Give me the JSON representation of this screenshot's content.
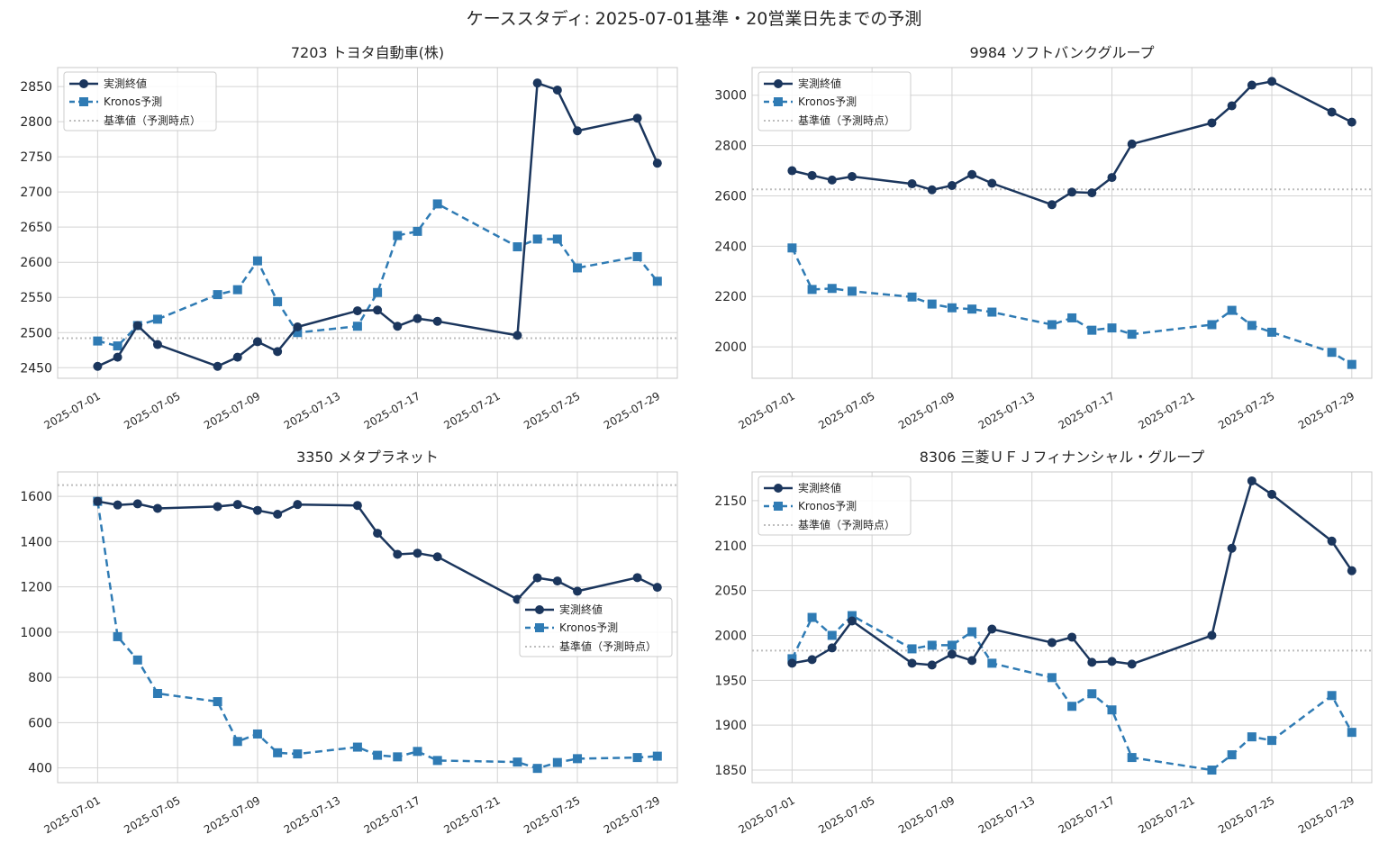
{
  "suptitle": "ケーススタディ: 2025-07-01基準・20営業日先までの予測",
  "colors": {
    "actual": "#1b365d",
    "forecast": "#2f7bb4",
    "baseline": "#bdbdbd",
    "grid": "#d3d3d3",
    "frame": "#c8c8c8"
  },
  "legend_labels": [
    "実測終値",
    "Kronos予測",
    "基準値（予測時点）"
  ],
  "chart_data": [
    {
      "type": "line",
      "title": "7203 トヨタ自動車(株)",
      "legend_position": "upper left",
      "ylim": [
        2435,
        2877
      ],
      "yticks": [
        2450,
        2500,
        2550,
        2600,
        2650,
        2700,
        2750,
        2800,
        2850
      ],
      "xlim": [
        "2025-06-29",
        "2025-07-30"
      ],
      "xticks": [
        "2025-07-01",
        "2025-07-05",
        "2025-07-09",
        "2025-07-13",
        "2025-07-17",
        "2025-07-21",
        "2025-07-25",
        "2025-07-29"
      ],
      "baseline": 2492,
      "x": [
        "2025-07-01",
        "2025-07-02",
        "2025-07-03",
        "2025-07-04",
        "2025-07-07",
        "2025-07-08",
        "2025-07-09",
        "2025-07-10",
        "2025-07-11",
        "2025-07-14",
        "2025-07-15",
        "2025-07-16",
        "2025-07-17",
        "2025-07-18",
        "2025-07-22",
        "2025-07-23",
        "2025-07-24",
        "2025-07-25",
        "2025-07-28",
        "2025-07-29"
      ],
      "series": [
        {
          "name": "実測終値",
          "values": [
            2452,
            2465,
            2510,
            2483,
            2452,
            2465,
            2487,
            2473,
            2508,
            2531,
            2532,
            2509,
            2520,
            2516,
            2496,
            2855,
            2845,
            2787,
            2805,
            2741
          ]
        },
        {
          "name": "Kronos予測",
          "values": [
            2488,
            2481,
            2510,
            2519,
            2554,
            2561,
            2602,
            2544,
            2500,
            2509,
            2557,
            2638,
            2644,
            2683,
            2622,
            2633,
            2633,
            2592,
            2608,
            2573
          ]
        }
      ]
    },
    {
      "type": "line",
      "title": "9984 ソフトバンクグループ",
      "legend_position": "upper left",
      "ylim": [
        1875,
        3110
      ],
      "yticks": [
        2000,
        2200,
        2400,
        2600,
        2800,
        3000
      ],
      "xlim": [
        "2025-06-29",
        "2025-07-30"
      ],
      "xticks": [
        "2025-07-01",
        "2025-07-05",
        "2025-07-09",
        "2025-07-13",
        "2025-07-17",
        "2025-07-21",
        "2025-07-25",
        "2025-07-29"
      ],
      "baseline": 2626,
      "x": [
        "2025-07-01",
        "2025-07-02",
        "2025-07-03",
        "2025-07-04",
        "2025-07-07",
        "2025-07-08",
        "2025-07-09",
        "2025-07-10",
        "2025-07-11",
        "2025-07-14",
        "2025-07-15",
        "2025-07-16",
        "2025-07-17",
        "2025-07-18",
        "2025-07-22",
        "2025-07-23",
        "2025-07-24",
        "2025-07-25",
        "2025-07-28",
        "2025-07-29"
      ],
      "series": [
        {
          "name": "実測終値",
          "values": [
            2700,
            2681,
            2663,
            2677,
            2648,
            2624,
            2641,
            2685,
            2650,
            2565,
            2615,
            2612,
            2673,
            2806,
            2890,
            2958,
            3040,
            3055,
            2933,
            2893
          ]
        },
        {
          "name": "Kronos予測",
          "values": [
            2393,
            2228,
            2232,
            2221,
            2198,
            2170,
            2155,
            2150,
            2138,
            2088,
            2115,
            2066,
            2075,
            2050,
            2088,
            2145,
            2085,
            2058,
            1978,
            1930
          ]
        }
      ]
    },
    {
      "type": "line",
      "title": "3350 メタプラネット",
      "legend_position": "center right",
      "ylim": [
        335,
        1708
      ],
      "yticks": [
        400,
        600,
        800,
        1000,
        1200,
        1400,
        1600
      ],
      "xlim": [
        "2025-06-29",
        "2025-07-30"
      ],
      "xticks": [
        "2025-07-01",
        "2025-07-05",
        "2025-07-09",
        "2025-07-13",
        "2025-07-17",
        "2025-07-21",
        "2025-07-25",
        "2025-07-29"
      ],
      "baseline": 1650,
      "x": [
        "2025-07-01",
        "2025-07-02",
        "2025-07-03",
        "2025-07-04",
        "2025-07-07",
        "2025-07-08",
        "2025-07-09",
        "2025-07-10",
        "2025-07-11",
        "2025-07-14",
        "2025-07-15",
        "2025-07-16",
        "2025-07-17",
        "2025-07-18",
        "2025-07-22",
        "2025-07-23",
        "2025-07-24",
        "2025-07-25",
        "2025-07-28",
        "2025-07-29"
      ],
      "series": [
        {
          "name": "実測終値",
          "values": [
            1578,
            1562,
            1567,
            1547,
            1555,
            1564,
            1538,
            1521,
            1564,
            1560,
            1437,
            1344,
            1349,
            1333,
            1145,
            1240,
            1226,
            1181,
            1241,
            1198
          ]
        },
        {
          "name": "Kronos予測",
          "values": [
            1578,
            980,
            877,
            729,
            693,
            517,
            550,
            467,
            462,
            492,
            456,
            449,
            473,
            433,
            426,
            398,
            424,
            441,
            446,
            452
          ]
        }
      ]
    },
    {
      "type": "line",
      "title": "8306 三菱ＵＦＪフィナンシャル・グループ",
      "legend_position": "upper left",
      "ylim": [
        1836,
        2182
      ],
      "yticks": [
        1850,
        1900,
        1950,
        2000,
        2050,
        2100,
        2150
      ],
      "xlim": [
        "2025-06-29",
        "2025-07-30"
      ],
      "xticks": [
        "2025-07-01",
        "2025-07-05",
        "2025-07-09",
        "2025-07-13",
        "2025-07-17",
        "2025-07-21",
        "2025-07-25",
        "2025-07-29"
      ],
      "baseline": 1983,
      "x": [
        "2025-07-01",
        "2025-07-02",
        "2025-07-03",
        "2025-07-04",
        "2025-07-07",
        "2025-07-08",
        "2025-07-09",
        "2025-07-10",
        "2025-07-11",
        "2025-07-14",
        "2025-07-15",
        "2025-07-16",
        "2025-07-17",
        "2025-07-18",
        "2025-07-22",
        "2025-07-23",
        "2025-07-24",
        "2025-07-25",
        "2025-07-28",
        "2025-07-29"
      ],
      "series": [
        {
          "name": "実測終値",
          "values": [
            1969,
            1973,
            1986,
            2016,
            1969,
            1967,
            1979,
            1972,
            2007,
            1992,
            1998,
            1970,
            1971,
            1968,
            2000,
            2097,
            2172,
            2157,
            2105,
            2072
          ]
        },
        {
          "name": "Kronos予測",
          "values": [
            1974,
            2020,
            2000,
            2022,
            1985,
            1989,
            1989,
            2004,
            1969,
            1953,
            1921,
            1935,
            1917,
            1864,
            1850,
            1867,
            1887,
            1883,
            1933,
            1892
          ]
        }
      ]
    }
  ]
}
